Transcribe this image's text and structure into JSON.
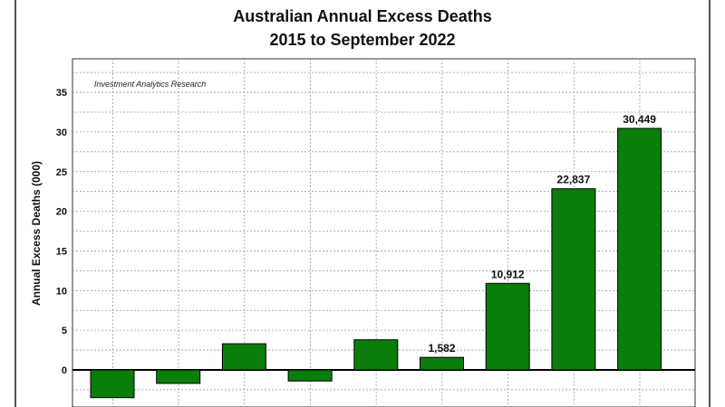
{
  "chart_data": {
    "type": "bar",
    "title": "Australian Annual Excess Deaths",
    "subtitle": "2015 to September 2022",
    "ylabel": "Annual Excess Deaths (000)",
    "xlabel": "",
    "annotation": "Investment Analytics Research",
    "ylim": [
      -5,
      38
    ],
    "yticks": [
      35,
      30,
      25,
      20,
      15,
      10,
      5,
      0
    ],
    "grid": true,
    "bar_color": "#0a7d0a",
    "values": [
      -3.5,
      -1.7,
      3.3,
      -1.4,
      3.8,
      1.582,
      10.912,
      22.837,
      30.449
    ],
    "data_labels": [
      "",
      "",
      "",
      "",
      "",
      "1,582",
      "10,912",
      "22,837",
      "30,449"
    ]
  }
}
